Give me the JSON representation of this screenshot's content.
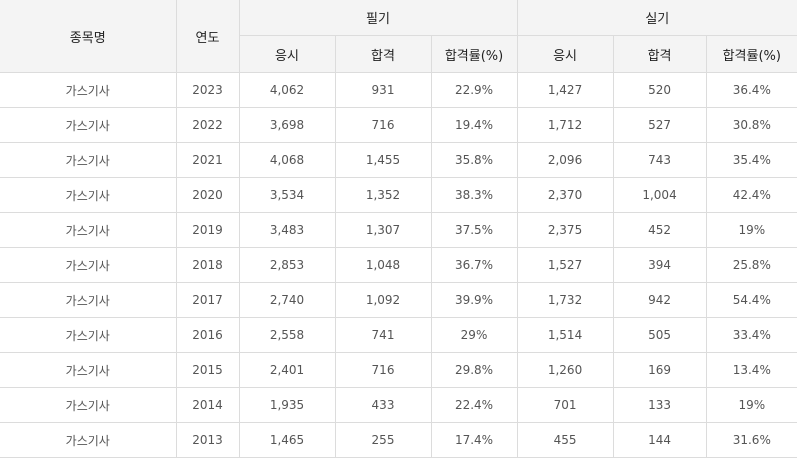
{
  "header": {
    "item_label": "종목명",
    "year_label": "연도",
    "written_label": "필기",
    "practical_label": "실기",
    "sub": {
      "applicants": "응시",
      "passed": "합격",
      "rate": "합격률(%)"
    }
  },
  "rows": [
    {
      "item": "가스기사",
      "year": "2023",
      "w_app": "4,062",
      "w_pass": "931",
      "w_rate": "22.9%",
      "p_app": "1,427",
      "p_pass": "520",
      "p_rate": "36.4%"
    },
    {
      "item": "가스기사",
      "year": "2022",
      "w_app": "3,698",
      "w_pass": "716",
      "w_rate": "19.4%",
      "p_app": "1,712",
      "p_pass": "527",
      "p_rate": "30.8%"
    },
    {
      "item": "가스기사",
      "year": "2021",
      "w_app": "4,068",
      "w_pass": "1,455",
      "w_rate": "35.8%",
      "p_app": "2,096",
      "p_pass": "743",
      "p_rate": "35.4%"
    },
    {
      "item": "가스기사",
      "year": "2020",
      "w_app": "3,534",
      "w_pass": "1,352",
      "w_rate": "38.3%",
      "p_app": "2,370",
      "p_pass": "1,004",
      "p_rate": "42.4%"
    },
    {
      "item": "가스기사",
      "year": "2019",
      "w_app": "3,483",
      "w_pass": "1,307",
      "w_rate": "37.5%",
      "p_app": "2,375",
      "p_pass": "452",
      "p_rate": "19%"
    },
    {
      "item": "가스기사",
      "year": "2018",
      "w_app": "2,853",
      "w_pass": "1,048",
      "w_rate": "36.7%",
      "p_app": "1,527",
      "p_pass": "394",
      "p_rate": "25.8%"
    },
    {
      "item": "가스기사",
      "year": "2017",
      "w_app": "2,740",
      "w_pass": "1,092",
      "w_rate": "39.9%",
      "p_app": "1,732",
      "p_pass": "942",
      "p_rate": "54.4%"
    },
    {
      "item": "가스기사",
      "year": "2016",
      "w_app": "2,558",
      "w_pass": "741",
      "w_rate": "29%",
      "p_app": "1,514",
      "p_pass": "505",
      "p_rate": "33.4%"
    },
    {
      "item": "가스기사",
      "year": "2015",
      "w_app": "2,401",
      "w_pass": "716",
      "w_rate": "29.8%",
      "p_app": "1,260",
      "p_pass": "169",
      "p_rate": "13.4%"
    },
    {
      "item": "가스기사",
      "year": "2014",
      "w_app": "1,935",
      "w_pass": "433",
      "w_rate": "22.4%",
      "p_app": "701",
      "p_pass": "133",
      "p_rate": "19%"
    },
    {
      "item": "가스기사",
      "year": "2013",
      "w_app": "1,465",
      "w_pass": "255",
      "w_rate": "17.4%",
      "p_app": "455",
      "p_pass": "144",
      "p_rate": "31.6%"
    }
  ]
}
